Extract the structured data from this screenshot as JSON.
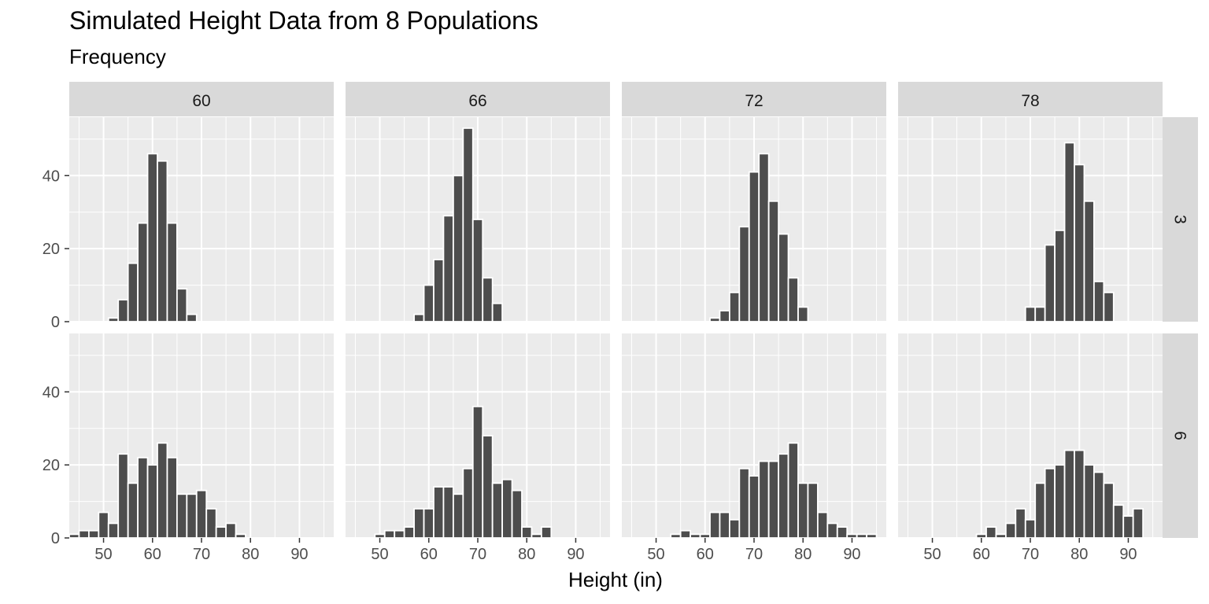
{
  "chart_data": {
    "type": "bar",
    "title": "Simulated Height Data from 8 Populations",
    "subtitle": "Frequency",
    "xlabel": "Height (in)",
    "ylabel": "",
    "xlim": [
      43,
      97
    ],
    "ylim": [
      0,
      56
    ],
    "xticks": [
      50,
      60,
      70,
      80,
      90
    ],
    "yticks": [
      0,
      20,
      40
    ],
    "bin_width": 2,
    "grid": true,
    "column_strips": [
      "60",
      "66",
      "72",
      "78"
    ],
    "row_strips": [
      "3",
      "6"
    ],
    "panels": [
      {
        "col": "60",
        "row": "3",
        "bin_centers": [
          52,
          54,
          56,
          58,
          60,
          62,
          64,
          66,
          68
        ],
        "counts": [
          1,
          6,
          16,
          27,
          46,
          44,
          27,
          9,
          2
        ]
      },
      {
        "col": "66",
        "row": "3",
        "bin_centers": [
          58,
          60,
          62,
          64,
          66,
          68,
          70,
          72,
          74
        ],
        "counts": [
          2,
          10,
          17,
          29,
          40,
          53,
          28,
          12,
          5
        ]
      },
      {
        "col": "72",
        "row": "3",
        "bin_centers": [
          62,
          64,
          66,
          68,
          70,
          72,
          74,
          76,
          78,
          80
        ],
        "counts": [
          1,
          3,
          8,
          26,
          41,
          46,
          33,
          24,
          12,
          4
        ]
      },
      {
        "col": "78",
        "row": "3",
        "bin_centers": [
          70,
          72,
          74,
          76,
          78,
          80,
          82,
          84,
          86
        ],
        "counts": [
          4,
          4,
          21,
          25,
          49,
          43,
          33,
          11,
          8
        ]
      },
      {
        "col": "60",
        "row": "6",
        "bin_centers": [
          44,
          46,
          48,
          50,
          52,
          54,
          56,
          58,
          60,
          62,
          64,
          66,
          68,
          70,
          72,
          74,
          76,
          78
        ],
        "counts": [
          1,
          2,
          2,
          7,
          4,
          23,
          15,
          22,
          20,
          26,
          22,
          12,
          12,
          13,
          8,
          3,
          4,
          1
        ]
      },
      {
        "col": "66",
        "row": "6",
        "bin_centers": [
          50,
          52,
          54,
          56,
          58,
          60,
          62,
          64,
          66,
          68,
          70,
          72,
          74,
          76,
          78,
          80,
          82,
          84
        ],
        "counts": [
          1,
          2,
          2,
          3,
          8,
          8,
          14,
          14,
          12,
          19,
          36,
          28,
          15,
          16,
          13,
          3,
          1,
          3
        ]
      },
      {
        "col": "72",
        "row": "6",
        "bin_centers": [
          54,
          56,
          58,
          60,
          62,
          64,
          66,
          68,
          70,
          72,
          74,
          76,
          78,
          80,
          82,
          84,
          86,
          88,
          90,
          92,
          94
        ],
        "counts": [
          1,
          2,
          1,
          1,
          7,
          7,
          5,
          19,
          17,
          21,
          21,
          23,
          26,
          15,
          15,
          7,
          4,
          3,
          1,
          1,
          1
        ]
      },
      {
        "col": "78",
        "row": "6",
        "bin_centers": [
          60,
          62,
          64,
          66,
          68,
          70,
          72,
          74,
          76,
          78,
          80,
          82,
          84,
          86,
          88,
          90,
          92
        ],
        "counts": [
          1,
          3,
          1,
          4,
          8,
          5,
          15,
          19,
          20,
          24,
          24,
          20,
          18,
          15,
          9,
          6,
          8
        ]
      }
    ],
    "colors": {
      "bar_fill": "#4d4d4d",
      "bar_outline": "#ffffff",
      "panel_background": "#ebebeb",
      "grid": "#ffffff",
      "strip_background": "#d9d9d9",
      "axis_text": "#4d4d4d"
    }
  }
}
